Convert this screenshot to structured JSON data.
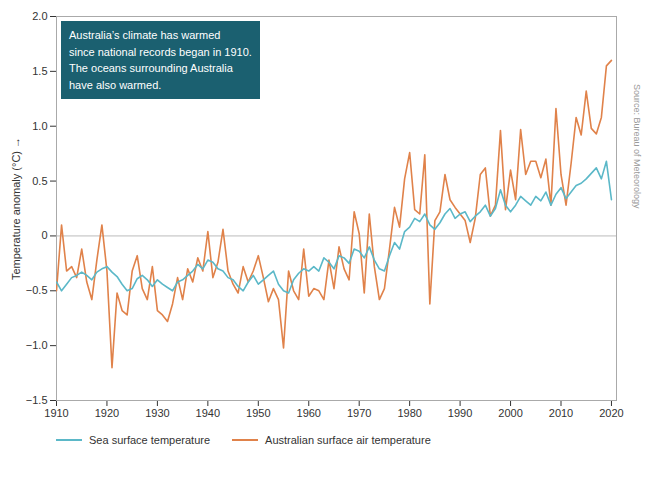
{
  "chart_data": {
    "type": "line",
    "ylabel": "Temperature anomaly (°C)",
    "annotation": "Australia’s climate has warmed\nsince national records began in 1910.\nThe oceans surrounding Australia\nhave also warmed.",
    "source": "Source: Bureau of Meteorology",
    "x": [
      1910,
      1911,
      1912,
      1913,
      1914,
      1915,
      1916,
      1917,
      1918,
      1919,
      1920,
      1921,
      1922,
      1923,
      1924,
      1925,
      1926,
      1927,
      1928,
      1929,
      1930,
      1931,
      1932,
      1933,
      1934,
      1935,
      1936,
      1937,
      1938,
      1939,
      1940,
      1941,
      1942,
      1943,
      1944,
      1945,
      1946,
      1947,
      1948,
      1949,
      1950,
      1951,
      1952,
      1953,
      1954,
      1955,
      1956,
      1957,
      1958,
      1959,
      1960,
      1961,
      1962,
      1963,
      1964,
      1965,
      1966,
      1967,
      1968,
      1969,
      1970,
      1971,
      1972,
      1973,
      1974,
      1975,
      1976,
      1977,
      1978,
      1979,
      1980,
      1981,
      1982,
      1983,
      1984,
      1985,
      1986,
      1987,
      1988,
      1989,
      1990,
      1991,
      1992,
      1993,
      1994,
      1995,
      1996,
      1997,
      1998,
      1999,
      2000,
      2001,
      2002,
      2003,
      2004,
      2005,
      2006,
      2007,
      2008,
      2009,
      2010,
      2011,
      2012,
      2013,
      2014,
      2015,
      2016,
      2017,
      2018,
      2019,
      2020
    ],
    "series": [
      {
        "name": "Sea surface temperature",
        "color": "#5bb8c8",
        "values": [
          -0.42,
          -0.5,
          -0.44,
          -0.38,
          -0.36,
          -0.33,
          -0.36,
          -0.4,
          -0.33,
          -0.3,
          -0.28,
          -0.33,
          -0.37,
          -0.44,
          -0.5,
          -0.48,
          -0.39,
          -0.36,
          -0.4,
          -0.46,
          -0.4,
          -0.44,
          -0.47,
          -0.5,
          -0.42,
          -0.4,
          -0.36,
          -0.32,
          -0.26,
          -0.3,
          -0.22,
          -0.24,
          -0.3,
          -0.32,
          -0.38,
          -0.4,
          -0.46,
          -0.5,
          -0.42,
          -0.36,
          -0.44,
          -0.4,
          -0.36,
          -0.32,
          -0.44,
          -0.5,
          -0.52,
          -0.4,
          -0.34,
          -0.3,
          -0.32,
          -0.28,
          -0.32,
          -0.2,
          -0.24,
          -0.3,
          -0.18,
          -0.2,
          -0.25,
          -0.12,
          -0.14,
          -0.2,
          -0.1,
          -0.22,
          -0.3,
          -0.32,
          -0.18,
          -0.06,
          -0.12,
          0.04,
          0.08,
          0.16,
          0.13,
          0.2,
          0.1,
          0.06,
          0.12,
          0.2,
          0.25,
          0.16,
          0.2,
          0.22,
          0.13,
          0.18,
          0.22,
          0.28,
          0.18,
          0.25,
          0.42,
          0.28,
          0.22,
          0.28,
          0.36,
          0.32,
          0.28,
          0.36,
          0.32,
          0.4,
          0.28,
          0.38,
          0.44,
          0.34,
          0.4,
          0.46,
          0.48,
          0.52,
          0.57,
          0.62,
          0.52,
          0.68,
          0.33
        ]
      },
      {
        "name": "Australian surface air temperature",
        "color": "#e0824a",
        "values": [
          -0.5,
          0.1,
          -0.32,
          -0.28,
          -0.38,
          -0.12,
          -0.42,
          -0.58,
          -0.22,
          0.1,
          -0.32,
          -1.2,
          -0.52,
          -0.68,
          -0.72,
          -0.32,
          -0.18,
          -0.48,
          -0.58,
          -0.28,
          -0.68,
          -0.72,
          -0.78,
          -0.62,
          -0.38,
          -0.58,
          -0.3,
          -0.42,
          -0.2,
          -0.32,
          0.04,
          -0.38,
          -0.24,
          0.06,
          -0.32,
          -0.44,
          -0.52,
          -0.28,
          -0.42,
          -0.32,
          -0.18,
          -0.38,
          -0.6,
          -0.48,
          -0.58,
          -1.02,
          -0.32,
          -0.5,
          -0.58,
          -0.12,
          -0.55,
          -0.48,
          -0.5,
          -0.58,
          -0.22,
          -0.48,
          -0.1,
          -0.3,
          -0.4,
          0.22,
          0.02,
          -0.52,
          0.2,
          -0.28,
          -0.58,
          -0.48,
          -0.12,
          0.26,
          0.08,
          0.52,
          0.76,
          0.24,
          0.2,
          0.74,
          -0.62,
          0.14,
          0.22,
          0.56,
          0.33,
          0.26,
          0.2,
          0.14,
          -0.06,
          0.16,
          0.56,
          0.62,
          0.18,
          0.28,
          0.96,
          0.24,
          0.6,
          0.33,
          0.97,
          0.56,
          0.68,
          0.68,
          0.53,
          0.7,
          0.28,
          1.16,
          0.56,
          0.28,
          0.66,
          1.08,
          0.92,
          1.32,
          0.98,
          0.93,
          1.08,
          1.55,
          1.6
        ]
      }
    ],
    "xlim": [
      1910,
      2021
    ],
    "ylim": [
      -1.5,
      2.0
    ],
    "xticks": [
      1910,
      1920,
      1930,
      1940,
      1950,
      1960,
      1970,
      1980,
      1990,
      2000,
      2010,
      2020
    ],
    "yticks": [
      {
        "value": -1.5,
        "label": "−1.5"
      },
      {
        "value": -1.0,
        "label": "−1.0"
      },
      {
        "value": -0.5,
        "label": "−0.5"
      },
      0,
      0.5,
      {
        "value": 1.0,
        "label": "1.0"
      },
      1.5,
      {
        "value": 2.0,
        "label": "2.0"
      }
    ],
    "grid": false,
    "legend": "bottom"
  }
}
